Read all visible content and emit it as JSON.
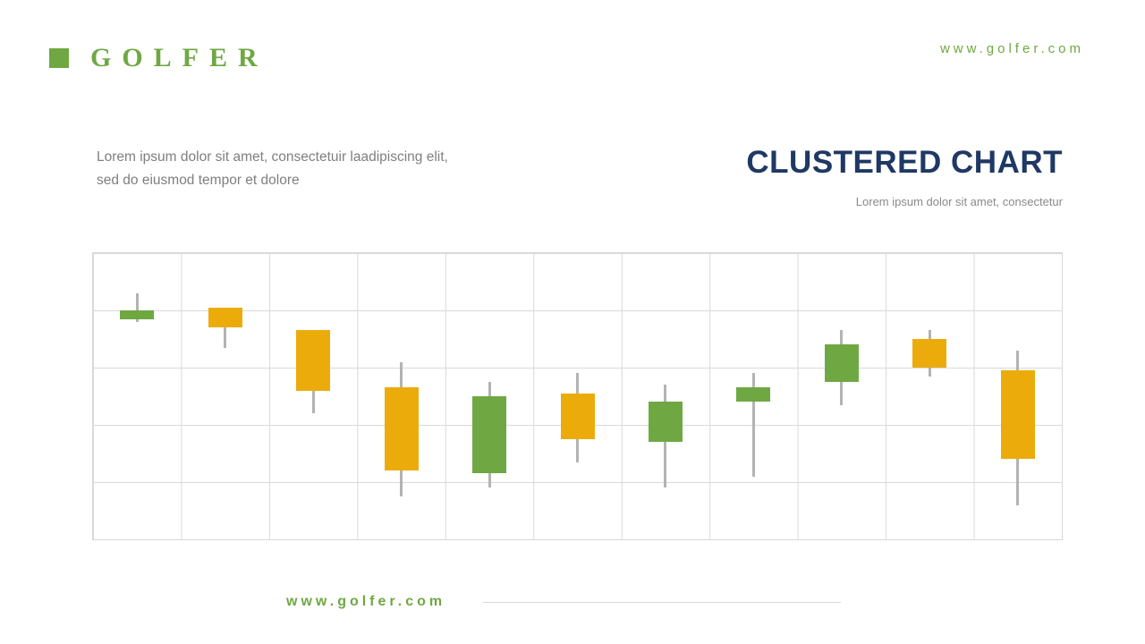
{
  "header": {
    "logo_text": "GOLFER",
    "website": "www.golfer.com"
  },
  "intro": {
    "line1": "Lorem ipsum dolor sit amet, consectetuir laadipiscing elit,",
    "line2": "sed do eiusmod tempor  et dolore"
  },
  "title_block": {
    "title": "CLUSTERED CHART",
    "subtitle": "Lorem ipsum dolor sit amet, consectetur"
  },
  "footer": {
    "website": "www.golfer.com"
  },
  "colors": {
    "green": "#6FA843",
    "yellow": "#EBAC0B",
    "navy": "#1F3864",
    "grid": "#D9D9D9",
    "wick": "#B3B3B3"
  },
  "chart_data": {
    "type": "candlestick",
    "title": "",
    "xlabel": "",
    "ylabel": "",
    "ylim": [
      0,
      100
    ],
    "x": [
      1,
      2,
      3,
      4,
      5,
      6,
      7,
      8,
      9,
      10,
      11
    ],
    "grid": {
      "columns": 11,
      "rows": 5,
      "visible": true
    },
    "legend": "none",
    "note": "no axis tick labels shown; values estimated on 0-100 scale of plot height",
    "candles": [
      {
        "x": 1,
        "color": "green",
        "open": 77,
        "close": 80,
        "high": 86,
        "low": 76
      },
      {
        "x": 2,
        "color": "yellow",
        "open": 81,
        "close": 74,
        "high": 81,
        "low": 67
      },
      {
        "x": 3,
        "color": "yellow",
        "open": 73,
        "close": 52,
        "high": 73,
        "low": 44
      },
      {
        "x": 4,
        "color": "yellow",
        "open": 53,
        "close": 24,
        "high": 62,
        "low": 15
      },
      {
        "x": 5,
        "color": "green",
        "open": 23,
        "close": 50,
        "high": 55,
        "low": 18
      },
      {
        "x": 6,
        "color": "yellow",
        "open": 51,
        "close": 35,
        "high": 58,
        "low": 27
      },
      {
        "x": 7,
        "color": "green",
        "open": 34,
        "close": 48,
        "high": 54,
        "low": 18
      },
      {
        "x": 8,
        "color": "green",
        "open": 48,
        "close": 53,
        "high": 58,
        "low": 22
      },
      {
        "x": 9,
        "color": "green",
        "open": 55,
        "close": 68,
        "high": 73,
        "low": 47
      },
      {
        "x": 10,
        "color": "yellow",
        "open": 70,
        "close": 60,
        "high": 73,
        "low": 57
      },
      {
        "x": 11,
        "color": "yellow",
        "open": 59,
        "close": 28,
        "high": 66,
        "low": 12
      }
    ]
  }
}
